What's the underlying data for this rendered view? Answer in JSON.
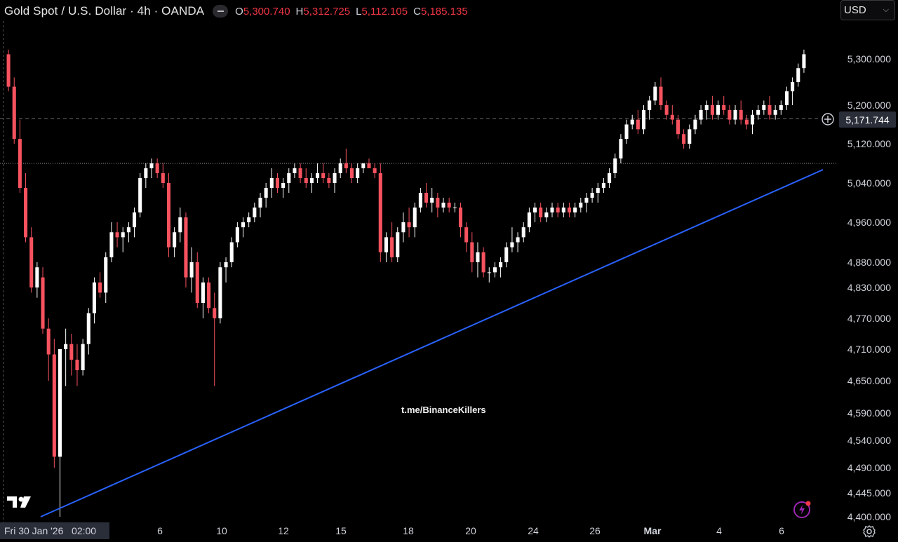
{
  "header": {
    "title": "Gold Spot / U.S. Dollar · 4h · OANDA",
    "ohlc": {
      "o_label": "O",
      "o": "5,300.740",
      "h_label": "H",
      "h": "5,312.725",
      "l_label": "L",
      "l": "5,112.105",
      "c_label": "C",
      "c": "5,185.135"
    }
  },
  "currency_selector": {
    "value": "USD"
  },
  "watermark": "t.me/BinanceKillers",
  "crosshair": {
    "price_label": "5,171.744",
    "date_label": "Fri 30 Jan '26   02:00"
  },
  "colors": {
    "up": "#ffffff",
    "down": "#f7525f",
    "trendline": "#2962ff",
    "background": "#000000"
  },
  "icons": {
    "logo": "tradingview-logo-icon",
    "add": "plus-circle-icon",
    "settings": "gear-icon",
    "alert": "lightning-icon"
  },
  "chart_data": {
    "type": "candlestick",
    "timeframe": "4h",
    "symbol": "Gold Spot / U.S. Dollar",
    "ylim": [
      4400,
      5400
    ],
    "y_ticks": [
      "5,300.000",
      "5,200.000",
      "5,120.000",
      "5,040.000",
      "4,960.000",
      "4,880.000",
      "4,830.000",
      "4,770.000",
      "4,710.000",
      "4,650.000",
      "4,590.000",
      "4,540.000",
      "4,490.000",
      "4,445.000",
      "4,400.000"
    ],
    "y_tick_values": [
      5300,
      5200,
      5120,
      5040,
      4960,
      4880,
      4830,
      4770,
      4710,
      4650,
      4590,
      4540,
      4490,
      4445,
      4400
    ],
    "x_ticks": [
      "6",
      "10",
      "12",
      "15",
      "18",
      "20",
      "24",
      "26",
      "Mar",
      "4",
      "6"
    ],
    "reference_levels": {
      "current_price": 5171.744,
      "horizontal_level": 5080
    },
    "trendline": {
      "from": {
        "bar": 0,
        "price": 4400
      },
      "to": {
        "bar": 143,
        "price": 5110
      }
    },
    "candles": [
      [
        5310,
        5320,
        5230,
        5240
      ],
      [
        5240,
        5260,
        5120,
        5130
      ],
      [
        5130,
        5170,
        5020,
        5030
      ],
      [
        5030,
        5060,
        4920,
        4930
      ],
      [
        4930,
        4950,
        4820,
        4830
      ],
      [
        4830,
        4880,
        4810,
        4870
      ],
      [
        4850,
        4870,
        4740,
        4750
      ],
      [
        4750,
        4770,
        4650,
        4700
      ],
      [
        4700,
        4730,
        4490,
        4510
      ],
      [
        4510,
        4700,
        4400,
        4710
      ],
      [
        4710,
        4750,
        4640,
        4720
      ],
      [
        4720,
        4740,
        4660,
        4690
      ],
      [
        4690,
        4720,
        4640,
        4670
      ],
      [
        4670,
        4730,
        4660,
        4720
      ],
      [
        4720,
        4790,
        4700,
        4780
      ],
      [
        4780,
        4850,
        4760,
        4840
      ],
      [
        4840,
        4860,
        4810,
        4820
      ],
      [
        4820,
        4900,
        4800,
        4890
      ],
      [
        4890,
        4960,
        4880,
        4940
      ],
      [
        4940,
        4960,
        4910,
        4930
      ],
      [
        4930,
        4950,
        4900,
        4940
      ],
      [
        4940,
        4960,
        4920,
        4950
      ],
      [
        4950,
        4990,
        4930,
        4980
      ],
      [
        4980,
        5060,
        4970,
        5050
      ],
      [
        5050,
        5080,
        5030,
        5070
      ],
      [
        5070,
        5090,
        5050,
        5080
      ],
      [
        5080,
        5090,
        5050,
        5060
      ],
      [
        5060,
        5080,
        5030,
        5040
      ],
      [
        5040,
        5060,
        4890,
        4910
      ],
      [
        4910,
        4950,
        4890,
        4940
      ],
      [
        4940,
        4990,
        4920,
        4970
      ],
      [
        4970,
        4980,
        4830,
        4850
      ],
      [
        4850,
        4910,
        4820,
        4880
      ],
      [
        4880,
        4900,
        4790,
        4800
      ],
      [
        4800,
        4850,
        4770,
        4840
      ],
      [
        4840,
        4850,
        4780,
        4790
      ],
      [
        4790,
        4820,
        4640,
        4770
      ],
      [
        4770,
        4880,
        4760,
        4870
      ],
      [
        4870,
        4890,
        4840,
        4880
      ],
      [
        4880,
        4930,
        4870,
        4920
      ],
      [
        4920,
        4960,
        4910,
        4950
      ],
      [
        4950,
        4970,
        4930,
        4960
      ],
      [
        4960,
        4980,
        4950,
        4970
      ],
      [
        4970,
        5000,
        4960,
        4990
      ],
      [
        4990,
        5020,
        4970,
        5010
      ],
      [
        5010,
        5040,
        4990,
        5030
      ],
      [
        5030,
        5070,
        5010,
        5050
      ],
      [
        5050,
        5060,
        5020,
        5030
      ],
      [
        5030,
        5050,
        5010,
        5040
      ],
      [
        5040,
        5070,
        5020,
        5060
      ],
      [
        5060,
        5080,
        5050,
        5070
      ],
      [
        5070,
        5080,
        5040,
        5050
      ],
      [
        5050,
        5070,
        5030,
        5040
      ],
      [
        5040,
        5060,
        5020,
        5050
      ],
      [
        5050,
        5080,
        5040,
        5060
      ],
      [
        5060,
        5080,
        5040,
        5050
      ],
      [
        5050,
        5060,
        5030,
        5040
      ],
      [
        5040,
        5070,
        5020,
        5060
      ],
      [
        5060,
        5090,
        5050,
        5080
      ],
      [
        5080,
        5110,
        5060,
        5070
      ],
      [
        5070,
        5080,
        5040,
        5050
      ],
      [
        5050,
        5080,
        5040,
        5070
      ],
      [
        5070,
        5080,
        5060,
        5080
      ],
      [
        5080,
        5090,
        5070,
        5070
      ],
      [
        5070,
        5080,
        5050,
        5060
      ],
      [
        5060,
        5080,
        4880,
        4900
      ],
      [
        4900,
        4940,
        4880,
        4930
      ],
      [
        4930,
        4960,
        4880,
        4890
      ],
      [
        4890,
        4950,
        4880,
        4940
      ],
      [
        4940,
        4980,
        4920,
        4960
      ],
      [
        4960,
        4990,
        4930,
        4950
      ],
      [
        4950,
        5000,
        4930,
        4990
      ],
      [
        4990,
        5030,
        4980,
        5020
      ],
      [
        5020,
        5040,
        4990,
        5000
      ],
      [
        5000,
        5030,
        4980,
        5010
      ],
      [
        5010,
        5020,
        4970,
        4990
      ],
      [
        4990,
        5010,
        4980,
        5000
      ],
      [
        5000,
        5010,
        4980,
        4990
      ],
      [
        4990,
        5000,
        4980,
        4990
      ],
      [
        4990,
        5000,
        4930,
        4950
      ],
      [
        4950,
        4960,
        4900,
        4920
      ],
      [
        4920,
        4940,
        4860,
        4880
      ],
      [
        4880,
        4920,
        4850,
        4900
      ],
      [
        4900,
        4910,
        4850,
        4860
      ],
      [
        4860,
        4870,
        4840,
        4860
      ],
      [
        4860,
        4880,
        4850,
        4870
      ],
      [
        4870,
        4890,
        4850,
        4880
      ],
      [
        4880,
        4920,
        4870,
        4910
      ],
      [
        4910,
        4950,
        4900,
        4920
      ],
      [
        4920,
        4940,
        4900,
        4930
      ],
      [
        4930,
        4960,
        4920,
        4950
      ],
      [
        4950,
        4990,
        4940,
        4980
      ],
      [
        4980,
        5000,
        4960,
        4990
      ],
      [
        4990,
        5000,
        4960,
        4970
      ],
      [
        4970,
        4990,
        4960,
        4980
      ],
      [
        4980,
        5000,
        4970,
        4990
      ],
      [
        4990,
        5000,
        4970,
        4980
      ],
      [
        4980,
        5000,
        4970,
        4990
      ],
      [
        4990,
        5000,
        4970,
        4980
      ],
      [
        4980,
        5000,
        4970,
        4990
      ],
      [
        4990,
        5010,
        4980,
        5000
      ],
      [
        5000,
        5020,
        4980,
        5010
      ],
      [
        5010,
        5030,
        5000,
        5020
      ],
      [
        5020,
        5040,
        5000,
        5030
      ],
      [
        5030,
        5050,
        5020,
        5040
      ],
      [
        5040,
        5070,
        5030,
        5060
      ],
      [
        5060,
        5100,
        5050,
        5090
      ],
      [
        5090,
        5140,
        5080,
        5130
      ],
      [
        5130,
        5170,
        5120,
        5160
      ],
      [
        5160,
        5180,
        5150,
        5170
      ],
      [
        5170,
        5190,
        5140,
        5150
      ],
      [
        5150,
        5200,
        5140,
        5190
      ],
      [
        5190,
        5220,
        5170,
        5210
      ],
      [
        5210,
        5250,
        5200,
        5240
      ],
      [
        5240,
        5260,
        5190,
        5200
      ],
      [
        5200,
        5210,
        5170,
        5180
      ],
      [
        5180,
        5200,
        5160,
        5170
      ],
      [
        5170,
        5180,
        5130,
        5140
      ],
      [
        5140,
        5150,
        5110,
        5120
      ],
      [
        5120,
        5160,
        5110,
        5150
      ],
      [
        5150,
        5180,
        5140,
        5170
      ],
      [
        5170,
        5200,
        5160,
        5190
      ],
      [
        5190,
        5210,
        5170,
        5200
      ],
      [
        5200,
        5220,
        5170,
        5180
      ],
      [
        5180,
        5210,
        5170,
        5200
      ],
      [
        5200,
        5220,
        5180,
        5190
      ],
      [
        5190,
        5200,
        5160,
        5170
      ],
      [
        5170,
        5200,
        5160,
        5190
      ],
      [
        5190,
        5210,
        5160,
        5170
      ],
      [
        5170,
        5180,
        5150,
        5160
      ],
      [
        5160,
        5190,
        5140,
        5180
      ],
      [
        5180,
        5200,
        5170,
        5190
      ],
      [
        5190,
        5210,
        5180,
        5200
      ],
      [
        5200,
        5220,
        5170,
        5180
      ],
      [
        5180,
        5200,
        5170,
        5190
      ],
      [
        5190,
        5210,
        5180,
        5200
      ],
      [
        5200,
        5240,
        5190,
        5230
      ],
      [
        5230,
        5260,
        5200,
        5250
      ],
      [
        5250,
        5290,
        5240,
        5280
      ],
      [
        5280,
        5320,
        5270,
        5310
      ]
    ]
  }
}
